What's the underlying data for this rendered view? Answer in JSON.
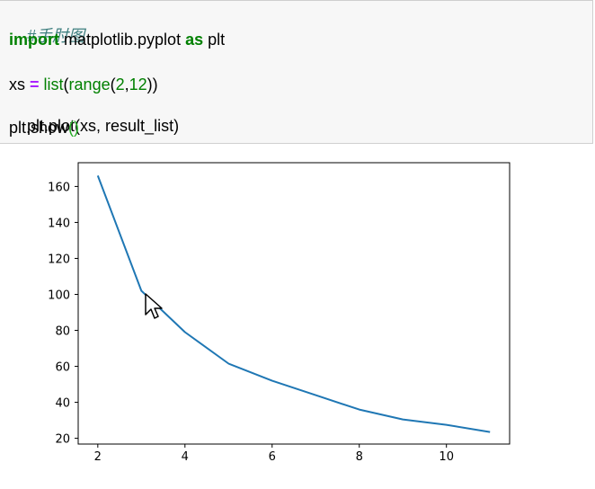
{
  "code": {
    "comment": "#手肘图",
    "line_import": {
      "kw1": "import",
      "module": " matplotlib.pyplot ",
      "kw2": "as",
      "alias": " plt"
    },
    "line_xs": {
      "var": "xs ",
      "op": "=",
      "sp": " ",
      "fn": "list",
      "open": "(",
      "fn2": "range",
      "args_open": "(",
      "a1": "2",
      "comma": ",",
      "a2": "12",
      "close": "))"
    },
    "line_plot": "plt.plot(xs, result_list)",
    "line_show": {
      "prefix": "plt.show",
      "parens": "()"
    }
  },
  "chart_data": {
    "type": "line",
    "x": [
      2,
      3,
      4,
      5,
      6,
      7,
      8,
      9,
      10,
      11
    ],
    "series": [
      {
        "values": [
          166,
          102,
          79,
          61.5,
          52,
          44,
          36,
          30.5,
          27.5,
          23.5
        ],
        "color": "#1f77b4"
      }
    ],
    "xlim": [
      1.55,
      11.45
    ],
    "ylim": [
      16.8,
      173.2
    ],
    "xticks": [
      2,
      4,
      6,
      8,
      10
    ],
    "yticks": [
      20,
      40,
      60,
      80,
      100,
      120,
      140,
      160
    ],
    "title": "",
    "xlabel": "",
    "ylabel": "",
    "grid": false
  }
}
